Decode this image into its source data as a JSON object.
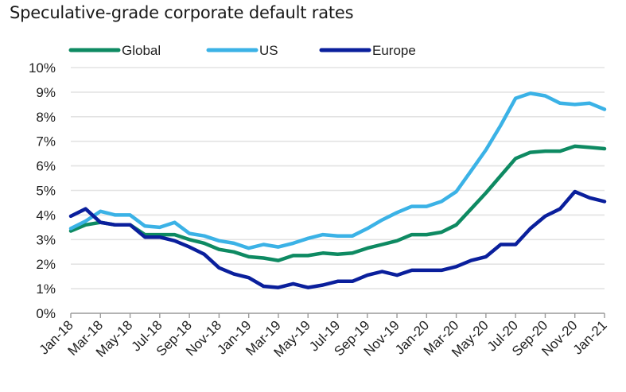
{
  "chart_data": {
    "type": "line",
    "title": "Speculative-grade corporate default rates",
    "xlabel": "",
    "ylabel": "",
    "ylim": [
      0,
      10
    ],
    "y_ticks": [
      "0%",
      "1%",
      "2%",
      "3%",
      "4%",
      "5%",
      "6%",
      "7%",
      "8%",
      "9%",
      "10%"
    ],
    "grid": true,
    "legend_position": "top",
    "x": [
      "Jan-18",
      "Feb-18",
      "Mar-18",
      "Apr-18",
      "May-18",
      "Jun-18",
      "Jul-18",
      "Aug-18",
      "Sep-18",
      "Oct-18",
      "Nov-18",
      "Dec-18",
      "Jan-19",
      "Feb-19",
      "Mar-19",
      "Apr-19",
      "May-19",
      "Jun-19",
      "Jul-19",
      "Aug-19",
      "Sep-19",
      "Oct-19",
      "Nov-19",
      "Dec-19",
      "Jan-20",
      "Feb-20",
      "Mar-20",
      "Apr-20",
      "May-20",
      "Jun-20",
      "Jul-20",
      "Aug-20",
      "Sep-20",
      "Oct-20",
      "Nov-20",
      "Dec-20",
      "Jan-21"
    ],
    "x_tick_labels": [
      "Jan-18",
      "Mar-18",
      "May-18",
      "Jul-18",
      "Sep-18",
      "Nov-18",
      "Jan-19",
      "Mar-19",
      "May-19",
      "Jul-19",
      "Sep-19",
      "Nov-19",
      "Jan-20",
      "Mar-20",
      "May-20",
      "Jul-20",
      "Sep-20",
      "Nov-20",
      "Jan-21"
    ],
    "series": [
      {
        "name": "Global",
        "color": "#0e8a62",
        "values": [
          3.35,
          3.6,
          3.7,
          3.6,
          3.6,
          3.2,
          3.2,
          3.2,
          3.0,
          2.85,
          2.6,
          2.5,
          2.3,
          2.25,
          2.15,
          2.35,
          2.35,
          2.45,
          2.4,
          2.45,
          2.65,
          2.8,
          2.95,
          3.2,
          3.2,
          3.3,
          3.6,
          4.25,
          4.9,
          5.6,
          6.3,
          6.55,
          6.6,
          6.6,
          6.8,
          6.75,
          6.7
        ]
      },
      {
        "name": "US",
        "color": "#3bb2e6",
        "values": [
          3.45,
          3.75,
          4.15,
          4.0,
          4.0,
          3.55,
          3.5,
          3.7,
          3.25,
          3.15,
          2.95,
          2.85,
          2.65,
          2.8,
          2.7,
          2.85,
          3.05,
          3.2,
          3.15,
          3.15,
          3.45,
          3.8,
          4.1,
          4.35,
          4.35,
          4.55,
          4.95,
          5.8,
          6.65,
          7.65,
          8.75,
          8.95,
          8.85,
          8.55,
          8.5,
          8.55,
          8.3
        ]
      },
      {
        "name": "Europe",
        "color": "#0a1f9c",
        "values": [
          3.95,
          4.25,
          3.7,
          3.6,
          3.6,
          3.1,
          3.1,
          2.95,
          2.7,
          2.4,
          1.85,
          1.6,
          1.45,
          1.1,
          1.05,
          1.2,
          1.05,
          1.15,
          1.3,
          1.3,
          1.55,
          1.7,
          1.55,
          1.75,
          1.75,
          1.75,
          1.9,
          2.15,
          2.3,
          2.8,
          2.8,
          3.45,
          3.95,
          4.25,
          4.95,
          4.7,
          4.55
        ]
      }
    ]
  }
}
